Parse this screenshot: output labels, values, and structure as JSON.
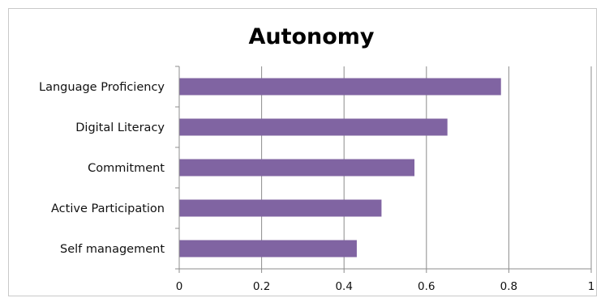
{
  "chart_data": {
    "type": "bar",
    "orientation": "horizontal",
    "title": "Autonomy",
    "categories": [
      "Language Proficiency",
      "Digital Literacy",
      "Commitment",
      "Active Participation",
      "Self management"
    ],
    "values": [
      0.78,
      0.65,
      0.57,
      0.49,
      0.43
    ],
    "xlim": [
      0,
      1
    ],
    "xticks": [
      0,
      0.2,
      0.4,
      0.6,
      0.8,
      1
    ],
    "xtick_labels": [
      "0",
      "0.2",
      "0.4",
      "0.6",
      "0.8",
      "1"
    ],
    "xlabel": "",
    "ylabel": "",
    "grid": "vertical",
    "legend": "none",
    "colors": {
      "bar": "#8064a2",
      "gridline": "#8c8c8c",
      "axis": "#8c8c8c"
    }
  }
}
